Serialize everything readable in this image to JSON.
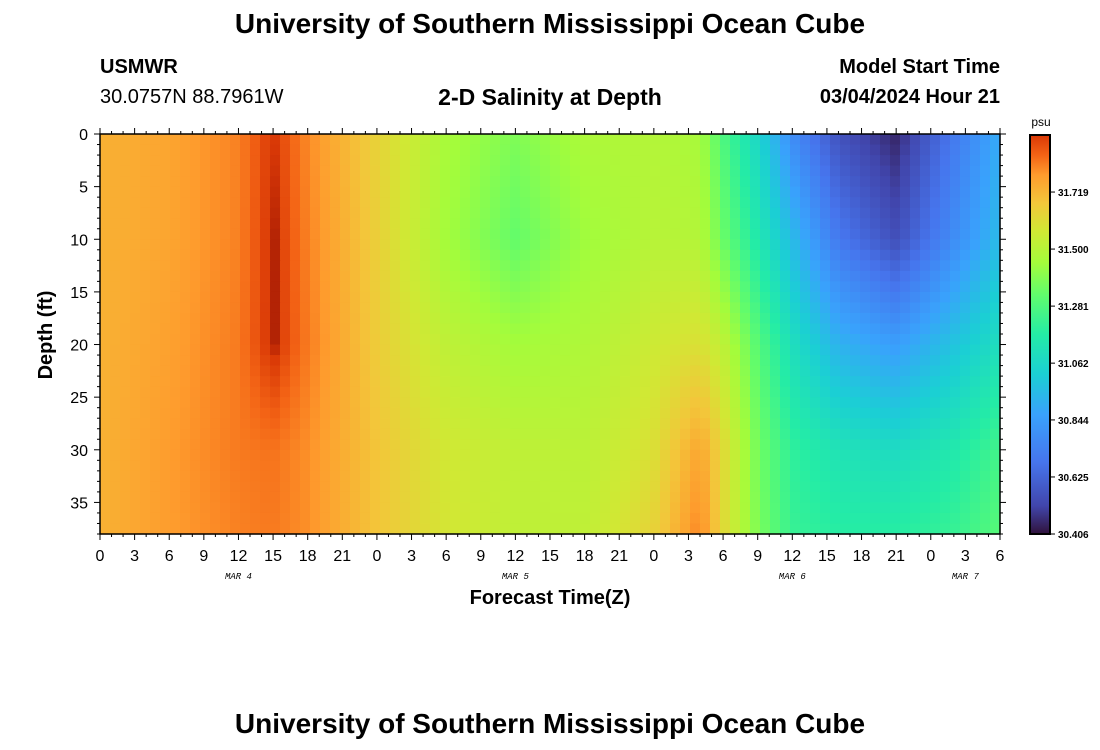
{
  "header": {
    "title": "University of Southern Mississippi Ocean Cube",
    "station": "USMWR",
    "coords": "30.0757N  88.7961W",
    "plot_title": "2-D Salinity at Depth",
    "start_label": "Model Start Time",
    "start_value": "03/04/2024 Hour 21"
  },
  "footer": {
    "title": "University of Southern Mississippi Ocean Cube"
  },
  "chart_data": {
    "type": "heatmap",
    "title": "2-D Salinity at Depth",
    "xlabel": "Forecast Time(Z)",
    "ylabel": "Depth (ft)",
    "colorbar_unit": "psu",
    "x_range_hours": [
      0,
      78
    ],
    "x_ticks": [
      {
        "h": 0,
        "label": "0"
      },
      {
        "h": 3,
        "label": "3"
      },
      {
        "h": 6,
        "label": "6"
      },
      {
        "h": 9,
        "label": "9"
      },
      {
        "h": 12,
        "label": "12"
      },
      {
        "h": 15,
        "label": "15"
      },
      {
        "h": 18,
        "label": "18"
      },
      {
        "h": 21,
        "label": "21"
      },
      {
        "h": 24,
        "label": "0"
      },
      {
        "h": 27,
        "label": "3"
      },
      {
        "h": 30,
        "label": "6"
      },
      {
        "h": 33,
        "label": "9"
      },
      {
        "h": 36,
        "label": "12"
      },
      {
        "h": 39,
        "label": "15"
      },
      {
        "h": 42,
        "label": "18"
      },
      {
        "h": 45,
        "label": "21"
      },
      {
        "h": 48,
        "label": "0"
      },
      {
        "h": 51,
        "label": "3"
      },
      {
        "h": 54,
        "label": "6"
      },
      {
        "h": 57,
        "label": "9"
      },
      {
        "h": 60,
        "label": "12"
      },
      {
        "h": 63,
        "label": "15"
      },
      {
        "h": 66,
        "label": "18"
      },
      {
        "h": 69,
        "label": "21"
      },
      {
        "h": 72,
        "label": "0"
      },
      {
        "h": 75,
        "label": "3"
      },
      {
        "h": 78,
        "label": "6"
      }
    ],
    "day_labels": [
      {
        "h": 12,
        "label": "MAR 4"
      },
      {
        "h": 36,
        "label": "MAR 5"
      },
      {
        "h": 60,
        "label": "MAR 6"
      },
      {
        "h": 75,
        "label": "MAR 7"
      }
    ],
    "y_range_ft": [
      0,
      38
    ],
    "y_ticks": [
      0,
      5,
      10,
      15,
      20,
      25,
      30,
      35
    ],
    "colorbar_range": [
      30.406,
      31.938
    ],
    "colorbar_ticks": [
      "31.719",
      "31.500",
      "31.281",
      "31.062",
      "30.844",
      "30.625",
      "30.406"
    ],
    "grid": {
      "time_hours": [
        0,
        6,
        12,
        15,
        18,
        24,
        30,
        36,
        42,
        48,
        52,
        54,
        57,
        60,
        64,
        69,
        74,
        78
      ],
      "depths_ft": [
        0,
        10,
        20,
        30,
        38
      ],
      "salinity_psu": [
        [
          31.73,
          31.76,
          31.82,
          31.92,
          31.81,
          31.64,
          31.46,
          31.38,
          31.47,
          31.49,
          31.46,
          31.28,
          31.06,
          30.78,
          30.56,
          30.45,
          30.7,
          30.9
        ],
        [
          31.73,
          31.76,
          31.82,
          31.93,
          31.82,
          31.65,
          31.45,
          31.33,
          31.44,
          31.5,
          31.49,
          31.34,
          31.15,
          30.95,
          30.7,
          30.55,
          30.78,
          30.95
        ],
        [
          31.73,
          31.77,
          31.83,
          31.93,
          31.83,
          31.66,
          31.52,
          31.45,
          31.48,
          31.56,
          31.6,
          31.52,
          31.3,
          31.1,
          30.92,
          30.85,
          30.98,
          31.1
        ],
        [
          31.73,
          31.78,
          31.83,
          31.84,
          31.8,
          31.68,
          31.57,
          31.52,
          31.51,
          31.6,
          31.76,
          31.62,
          31.36,
          31.2,
          31.12,
          31.08,
          31.15,
          31.25
        ],
        [
          31.73,
          31.78,
          31.82,
          31.83,
          31.8,
          31.68,
          31.58,
          31.52,
          31.52,
          31.64,
          31.82,
          31.62,
          31.38,
          31.22,
          31.18,
          31.18,
          31.22,
          31.3
        ]
      ]
    }
  }
}
